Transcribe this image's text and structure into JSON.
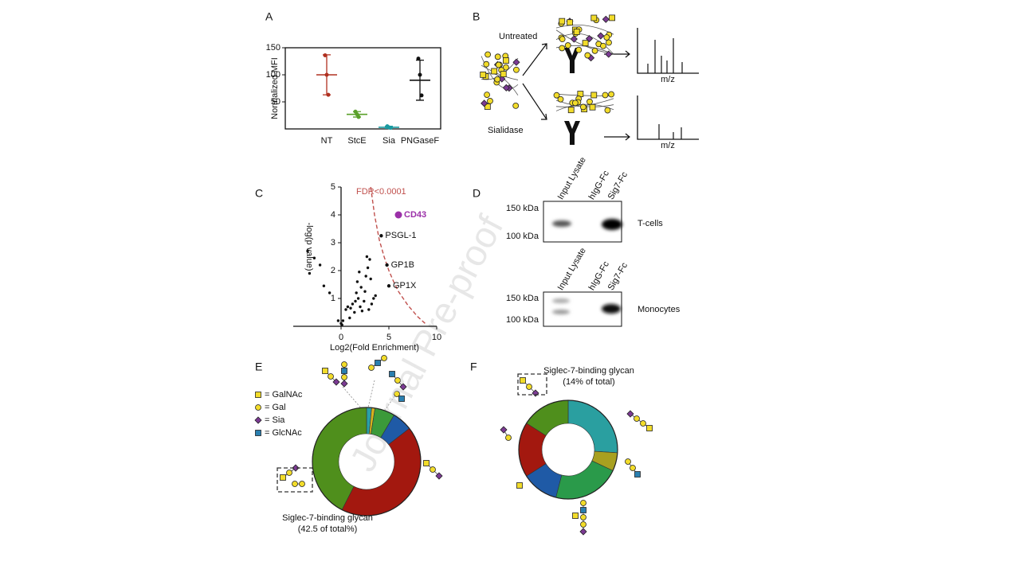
{
  "panel_labels": [
    "A",
    "B",
    "C",
    "D",
    "E",
    "F"
  ],
  "watermark": "Journal Pre-proof",
  "panel_b": {
    "untreated": "Untreated",
    "sialidase": "Sialidase",
    "axis_labels": [
      "m/z",
      "m/z"
    ]
  },
  "panel_d": {
    "lanes": [
      "Input Lysate",
      "hIgG-Fc",
      "Sig7-Fc"
    ],
    "blots": [
      {
        "label": "T-cells",
        "markers": [
          "150 kDa",
          "100 kDa"
        ]
      },
      {
        "label": "Monocytes",
        "markers": [
          "150 kDa",
          "100 kDa"
        ]
      }
    ]
  },
  "legend_e": [
    "= GalNAc",
    "= Gal",
    "= Sia",
    "= GlcNAc"
  ],
  "chart_data": [
    {
      "type": "dot_plot",
      "ylabel": "Normalized MFI",
      "categories": [
        "NT",
        "StcE",
        "Sia",
        "PNGaseF"
      ],
      "values": [
        100,
        27,
        3,
        90
      ],
      "errors": [
        37,
        5,
        2,
        37
      ],
      "points": [
        [
          136,
          100,
          63
        ],
        [
          32,
          27,
          22
        ],
        [
          5,
          3,
          2
        ],
        [
          130,
          100,
          62
        ]
      ],
      "colors": [
        "#b03020",
        "#5aa02a",
        "#1a9aa0",
        "#111111"
      ],
      "ylim": [
        0,
        150
      ],
      "yticks": [
        50,
        100,
        150
      ]
    },
    {
      "type": "volcano",
      "xlabel": "Log2(Fold Enrichment)",
      "ylabel": "-log(p value)",
      "xlim": [
        -5,
        10
      ],
      "ylim": [
        0,
        5
      ],
      "xticks": [
        0,
        5,
        10
      ],
      "yticks": [
        1,
        2,
        3,
        4,
        5
      ],
      "points": {
        "color": "#111111",
        "x": [
          -3.5,
          -3.3,
          -2.8,
          -2.2,
          -1.8,
          -1.2,
          -0.3,
          0,
          0.1,
          0.2,
          0.5,
          0.7,
          1.0,
          1.2,
          0.9,
          1.4,
          1.5,
          1.6,
          1.7,
          1.8,
          2.0,
          2.1,
          2.2,
          2.4,
          2.5,
          2.6,
          2.8,
          2.9,
          3.0,
          3.1,
          2.7,
          1.9,
          3.2,
          3.4,
          3.6
        ],
        "y": [
          2.7,
          1.9,
          2.45,
          2.2,
          1.45,
          1.2,
          0.2,
          0.1,
          0.05,
          0.2,
          0.6,
          0.7,
          0.65,
          0.8,
          0.3,
          0.5,
          0.9,
          1.2,
          1.6,
          1.0,
          0.7,
          1.4,
          0.55,
          0.9,
          1.25,
          1.8,
          2.1,
          0.6,
          2.4,
          1.7,
          2.5,
          1.95,
          0.8,
          1.0,
          1.1
        ]
      },
      "highlights": {
        "labels": [
          "CD43",
          "PSGL-1",
          "GP1B",
          "GP1X"
        ],
        "x": [
          6.0,
          4.2,
          4.8,
          5.0
        ],
        "y": [
          4.0,
          3.25,
          2.2,
          1.45
        ],
        "colors": [
          "#9b30a8",
          "#111111",
          "#111111",
          "#111111"
        ]
      },
      "threshold": {
        "label": "FDR<0.0001",
        "color": "#c0504d",
        "x": [
          3.1,
          3.5,
          4,
          4.5,
          5,
          5.5,
          6,
          7,
          8,
          8.8
        ],
        "y": [
          5,
          4,
          3.1,
          2.5,
          2,
          1.6,
          1.25,
          0.75,
          0.35,
          0.1
        ]
      }
    },
    {
      "type": "donut",
      "annotation": [
        "Siglec-7-binding glycan",
        "(42.5 of total%)"
      ],
      "values": [
        1.5,
        1,
        6,
        6,
        43,
        42.5
      ],
      "colors": [
        "#2aa0a8",
        "#d6b21e",
        "#3b9a3a",
        "#1f5aa6",
        "#a3180f",
        "#4f8f1c"
      ]
    },
    {
      "type": "donut",
      "annotation": [
        "Siglec-7-binding glycan",
        "(14% of total)"
      ],
      "values": [
        26,
        6,
        22,
        12,
        18,
        16
      ],
      "colors": [
        "#2a9fa0",
        "#a8a020",
        "#2a9a4a",
        "#1f5aa6",
        "#a3180f",
        "#4f8f1c"
      ]
    }
  ]
}
